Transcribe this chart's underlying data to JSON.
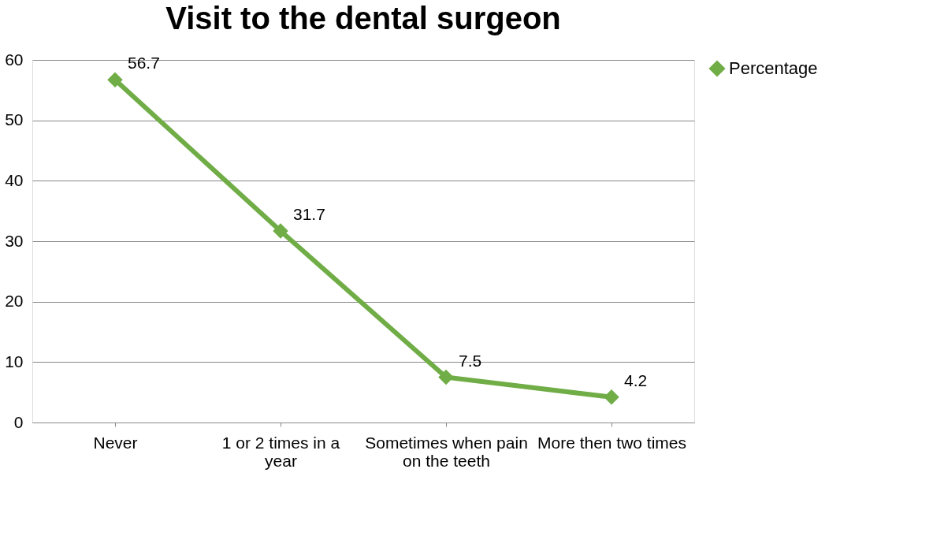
{
  "chart_data": {
    "type": "line",
    "title": "Visit to the dental surgeon",
    "categories": [
      "Never",
      "1 or 2 times in a year",
      "Sometimes when pain on the teeth",
      "More then two times"
    ],
    "series": [
      {
        "name": "Percentage",
        "color": "#70ad47",
        "values": [
          56.7,
          31.7,
          7.5,
          4.2
        ]
      }
    ],
    "ylim": [
      0,
      60
    ],
    "yticks": [
      0,
      10,
      20,
      30,
      40,
      50,
      60
    ],
    "grid": "y",
    "legend": "right",
    "marker": "diamond",
    "line_style": "solid",
    "data_labels": true
  }
}
